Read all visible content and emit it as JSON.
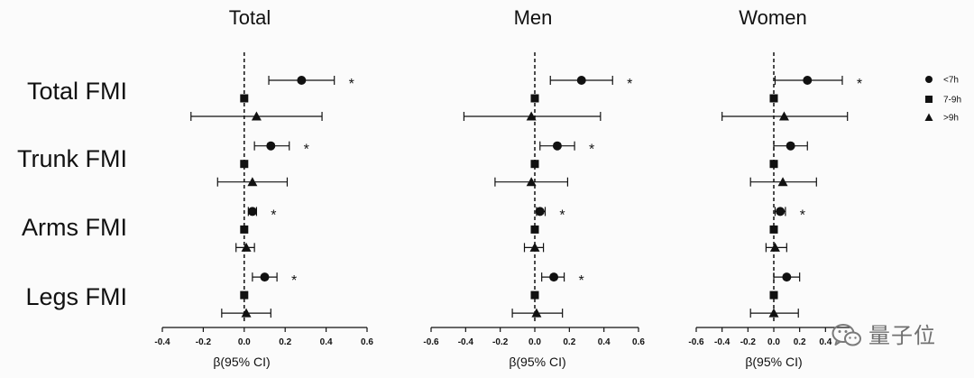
{
  "watermark": {
    "text": "量子位",
    "icon": "wechat-icon"
  },
  "chart_data": {
    "type": "scatter",
    "subtype": "forest",
    "categories": [
      "Total FMI",
      "Trunk FMI",
      "Arms FMI",
      "Legs FMI"
    ],
    "series": [
      {
        "name": "<7h",
        "marker": "circle"
      },
      {
        "name": "7-9h",
        "marker": "square"
      },
      {
        "name": ">9h",
        "marker": "triangle"
      }
    ],
    "legend_position": "right",
    "grid": false,
    "reference_line_x": 0,
    "significance_marker": "*",
    "colors": {
      "marks": "#111111"
    },
    "facets": [
      {
        "title": "Total",
        "xlabel": "β(95% CI)",
        "xlim": [
          -0.4,
          0.6
        ],
        "xticks": [
          -0.4,
          -0.2,
          0.0,
          0.2,
          0.4,
          0.6
        ],
        "xtick_labels": [
          "-0.4",
          "-0.2",
          "0.0",
          "0.2",
          "0.4",
          "0.6"
        ],
        "series_values": [
          {
            "values": [
              0.28,
              0.13,
              0.04,
              0.1
            ],
            "ci_low": [
              0.12,
              0.05,
              0.02,
              0.04
            ],
            "ci_high": [
              0.44,
              0.22,
              0.06,
              0.16
            ],
            "significant": [
              true,
              true,
              true,
              true
            ]
          },
          {
            "values": [
              0.0,
              0.0,
              0.0,
              0.0
            ],
            "ci_low": [
              null,
              null,
              null,
              null
            ],
            "ci_high": [
              null,
              null,
              null,
              null
            ],
            "significant": [
              false,
              false,
              false,
              false
            ]
          },
          {
            "values": [
              0.06,
              0.04,
              0.01,
              0.01
            ],
            "ci_low": [
              -0.26,
              -0.13,
              -0.04,
              -0.11
            ],
            "ci_high": [
              0.38,
              0.21,
              0.05,
              0.13
            ],
            "significant": [
              false,
              false,
              false,
              false
            ]
          }
        ]
      },
      {
        "title": "Men",
        "xlabel": "β(95% CI)",
        "xlim": [
          -0.6,
          0.6
        ],
        "xticks": [
          -0.6,
          -0.4,
          -0.2,
          0.0,
          0.2,
          0.4,
          0.6
        ],
        "xtick_labels": [
          "-0.6",
          "-0.4",
          "-0.2",
          "0.0",
          "0.2",
          "0.4",
          "0.6"
        ],
        "series_values": [
          {
            "values": [
              0.27,
              0.13,
              0.03,
              0.11
            ],
            "ci_low": [
              0.09,
              0.03,
              0.01,
              0.04
            ],
            "ci_high": [
              0.45,
              0.23,
              0.06,
              0.17
            ],
            "significant": [
              true,
              true,
              true,
              true
            ]
          },
          {
            "values": [
              0.0,
              0.0,
              0.0,
              0.0
            ],
            "ci_low": [
              null,
              null,
              null,
              null
            ],
            "ci_high": [
              null,
              null,
              null,
              null
            ],
            "significant": [
              false,
              false,
              false,
              false
            ]
          },
          {
            "values": [
              -0.02,
              -0.02,
              0.0,
              0.01
            ],
            "ci_low": [
              -0.41,
              -0.23,
              -0.06,
              -0.13
            ],
            "ci_high": [
              0.38,
              0.19,
              0.05,
              0.16
            ],
            "significant": [
              false,
              false,
              false,
              false
            ]
          }
        ]
      },
      {
        "title": "Women",
        "xlabel": "β(95% CI)",
        "xlim": [
          -0.6,
          0.6
        ],
        "xticks": [
          -0.6,
          -0.4,
          -0.2,
          0.0,
          0.2,
          0.4
        ],
        "xtick_labels": [
          "-0.6",
          "-0.4",
          "-0.2",
          "0.0",
          "0.2",
          "0.4"
        ],
        "series_values": [
          {
            "values": [
              0.26,
              0.13,
              0.05,
              0.1
            ],
            "ci_low": [
              0.01,
              0.0,
              0.01,
              0.0
            ],
            "ci_high": [
              0.53,
              0.26,
              0.09,
              0.2
            ],
            "significant": [
              true,
              false,
              true,
              false
            ]
          },
          {
            "values": [
              0.0,
              0.0,
              0.0,
              0.0
            ],
            "ci_low": [
              null,
              null,
              null,
              null
            ],
            "ci_high": [
              null,
              null,
              null,
              null
            ],
            "significant": [
              false,
              false,
              false,
              false
            ]
          },
          {
            "values": [
              0.08,
              0.07,
              0.01,
              0.0
            ],
            "ci_low": [
              -0.4,
              -0.18,
              -0.06,
              -0.18
            ],
            "ci_high": [
              0.57,
              0.33,
              0.1,
              0.19
            ],
            "significant": [
              false,
              false,
              false,
              false
            ]
          }
        ]
      }
    ]
  }
}
